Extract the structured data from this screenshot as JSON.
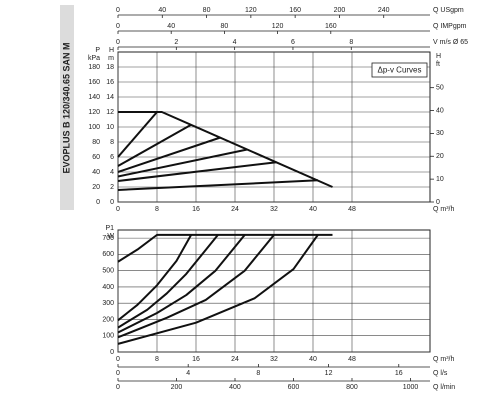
{
  "chart_data": [
    {
      "type": "line",
      "title": "EVOPLUS B 120/340.65 SAN M",
      "annotation": "Δp-v Curves",
      "color": "#111111",
      "grid": true,
      "xlabel": "Q m³/h",
      "xlim": [
        0,
        64
      ],
      "xticks": [
        0,
        8,
        16,
        24,
        32,
        40,
        48
      ],
      "ylabel": [
        "H",
        "m"
      ],
      "ylim": [
        0,
        20
      ],
      "yticks": [
        0,
        2,
        4,
        6,
        8,
        10,
        12,
        14,
        16,
        18
      ],
      "y3label": [
        "P",
        "kPa"
      ],
      "y3lim": [
        0,
        200
      ],
      "y3ticks": [
        0,
        20,
        40,
        60,
        80,
        100,
        120,
        140,
        160,
        180
      ],
      "y2label": [
        "H",
        "ft"
      ],
      "y2lim": [
        0,
        65.6
      ],
      "y2ticks": [
        0,
        10,
        20,
        30,
        40,
        50
      ],
      "top_axes": [
        {
          "label": "Q USgpm",
          "lim": [
            0,
            281.8
          ],
          "ticks": [
            0,
            40,
            80,
            120,
            160,
            200,
            240
          ]
        },
        {
          "label": "Q IMPgpm",
          "lim": [
            0,
            234.6
          ],
          "ticks": [
            0,
            40,
            80,
            120,
            160
          ]
        },
        {
          "label": "V m/s Ø 65",
          "lim": [
            0,
            10.7
          ],
          "ticks": [
            0,
            2,
            4,
            6,
            8
          ]
        }
      ],
      "series": [
        {
          "x": [
            0,
            9,
            44
          ],
          "values": [
            12,
            12,
            2
          ]
        },
        {
          "x": [
            0,
            8
          ],
          "values": [
            6,
            12
          ]
        },
        {
          "x": [
            0,
            15
          ],
          "values": [
            4.8,
            10.3
          ]
        },
        {
          "x": [
            0,
            21
          ],
          "values": [
            4,
            8.6
          ]
        },
        {
          "x": [
            0,
            26.5
          ],
          "values": [
            3.4,
            7
          ]
        },
        {
          "x": [
            0,
            32.5
          ],
          "values": [
            2.8,
            5.3
          ]
        },
        {
          "x": [
            0,
            41
          ],
          "values": [
            1.6,
            2.9
          ]
        }
      ]
    },
    {
      "type": "line",
      "color": "#111111",
      "grid": true,
      "xlabel": "Q m³/h",
      "xlim": [
        0,
        64
      ],
      "xticks": [
        0,
        8,
        16,
        24,
        32,
        40,
        48
      ],
      "ylabel": [
        "P1",
        "W"
      ],
      "ylim": [
        0,
        750
      ],
      "yticks": [
        0,
        100,
        200,
        300,
        400,
        500,
        600,
        700
      ],
      "bottom_axes": [
        {
          "label": "Q l/s",
          "lim": [
            0,
            17.78
          ],
          "ticks": [
            0,
            4,
            8,
            12,
            16
          ]
        },
        {
          "label": "Q l/min",
          "lim": [
            0,
            1066.7
          ],
          "ticks": [
            0,
            200,
            400,
            600,
            800,
            1000
          ]
        }
      ],
      "series": [
        {
          "x": [
            0,
            4,
            8,
            44
          ],
          "values": [
            555,
            630,
            720,
            720
          ]
        },
        {
          "x": [
            0,
            4,
            8,
            12,
            15
          ],
          "values": [
            195,
            290,
            410,
            560,
            720
          ]
        },
        {
          "x": [
            0,
            6,
            10,
            14,
            20.5
          ],
          "values": [
            150,
            260,
            360,
            480,
            720
          ]
        },
        {
          "x": [
            0,
            8,
            14,
            20,
            26
          ],
          "values": [
            120,
            240,
            350,
            500,
            720
          ]
        },
        {
          "x": [
            0,
            10,
            18,
            26,
            32
          ],
          "values": [
            90,
            210,
            320,
            500,
            720
          ]
        },
        {
          "x": [
            0,
            16,
            28,
            36,
            41
          ],
          "values": [
            50,
            180,
            330,
            510,
            720
          ]
        }
      ]
    }
  ]
}
